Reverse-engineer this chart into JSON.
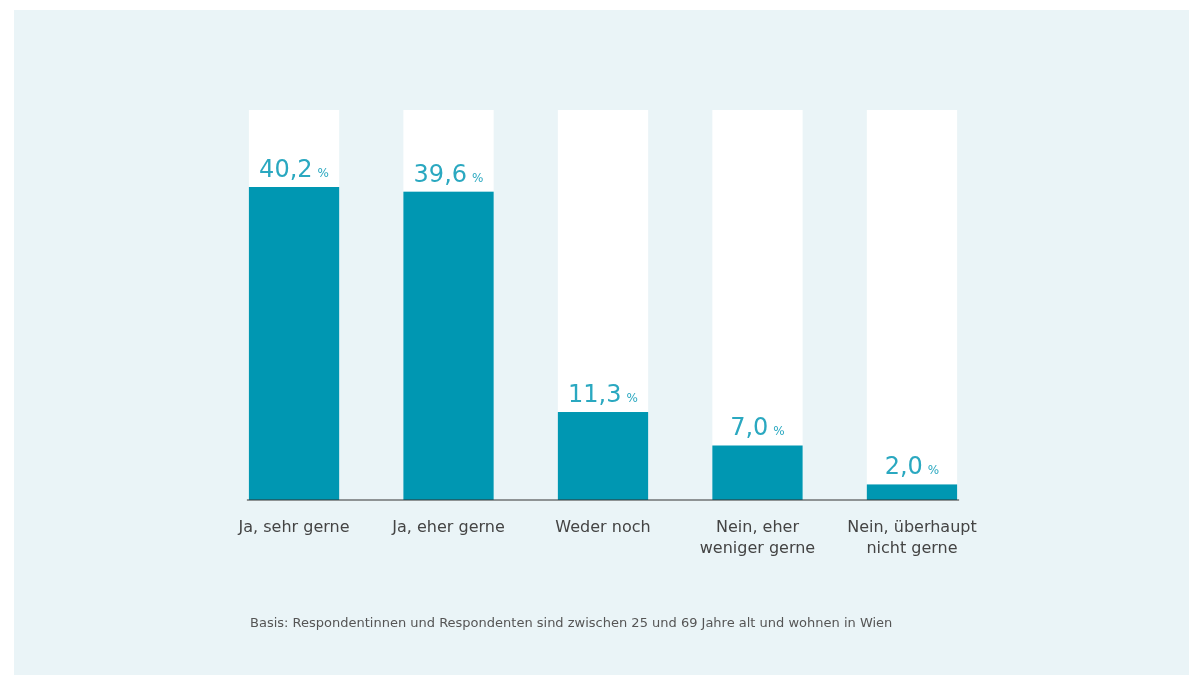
{
  "chart_data": {
    "type": "bar",
    "categories": [
      "Ja, sehr gerne",
      "Ja, eher gerne",
      "Weder noch",
      "Nein, eher weniger gerne",
      "Nein, überhaupt nicht gerne"
    ],
    "values": [
      40.2,
      39.6,
      11.3,
      7.0,
      2.0
    ],
    "value_labels": [
      "40,2 %",
      "39,6 %",
      "11,3 %",
      "7,0 %",
      "2,0 %"
    ],
    "color": "#0097b2",
    "annotations": [
      "Basis: Respondentinnen und Respondenten sind zwischen 25 und 69 Jahre alt und wohnen in Wien"
    ]
  }
}
